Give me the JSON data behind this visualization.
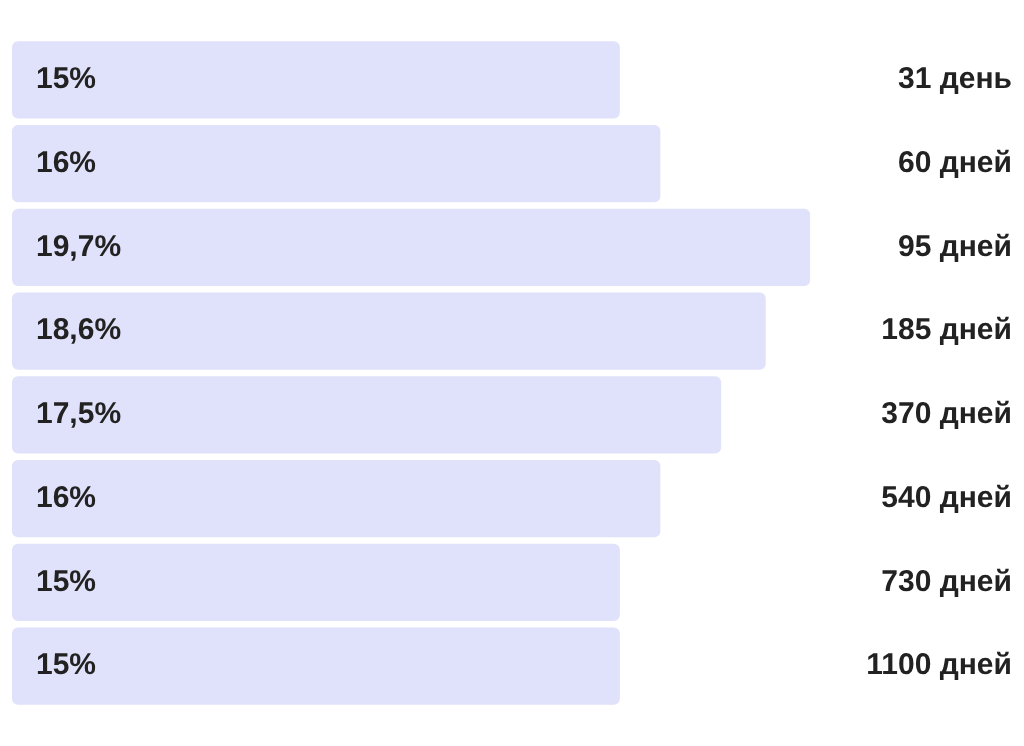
{
  "chart_data": {
    "type": "bar",
    "orientation": "horizontal",
    "categories": [
      "31 день",
      "60 дней",
      "95 дней",
      "185 дней",
      "370 дней",
      "540 дней",
      "730 дней",
      "1100 дней"
    ],
    "values": [
      15,
      16,
      19.7,
      18.6,
      17.5,
      16,
      15,
      15
    ],
    "value_labels": [
      "15%",
      "16%",
      "19,7%",
      "18,6%",
      "17,5%",
      "16%",
      "15%",
      "15%"
    ],
    "color": "#e0e1fa",
    "legend": false
  }
}
